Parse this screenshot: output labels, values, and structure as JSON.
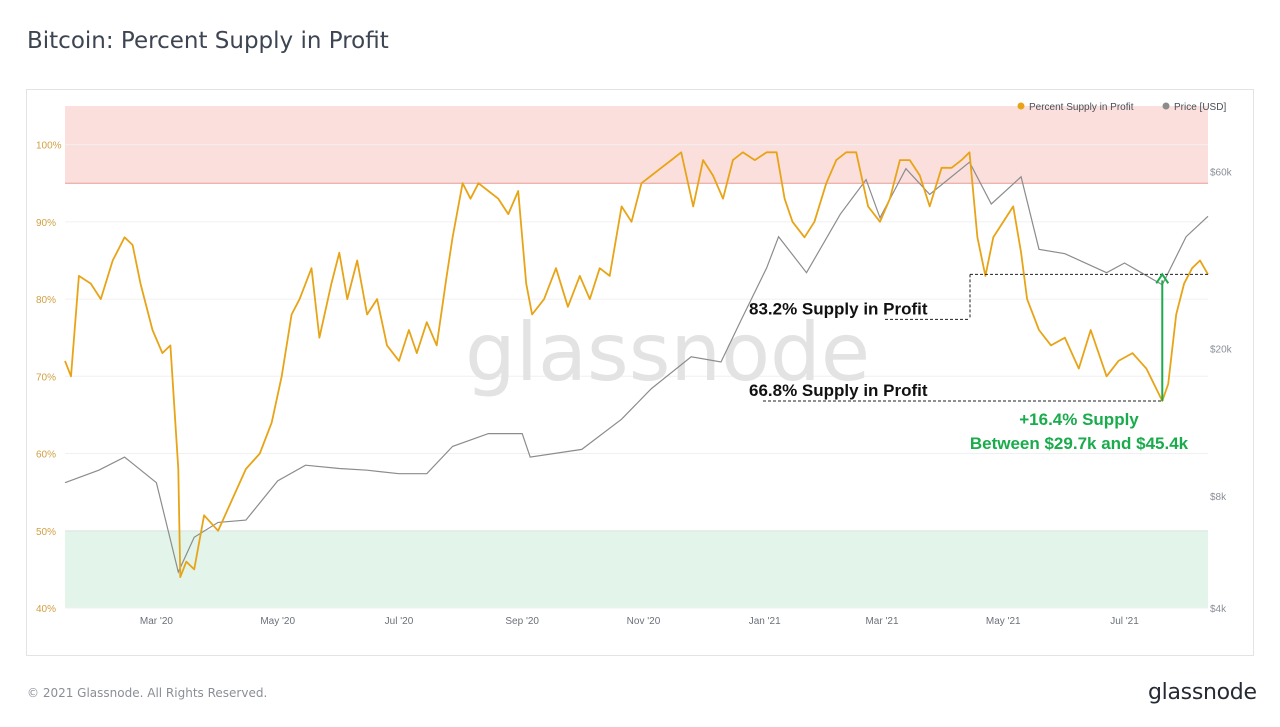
{
  "page": {
    "title": "Bitcoin: Percent Supply in Profit",
    "copyright": "© 2021 Glassnode. All Rights Reserved.",
    "brand": "glassnode",
    "watermark": "glassnode"
  },
  "colors": {
    "supply_line": "#e8a417",
    "price_line": "#8c8c8c",
    "upper_band": "#fbdfdd",
    "upper_band_line": "#e89a93",
    "lower_band": "#e3f4ea",
    "lower_band_line": "#9fd2b0",
    "green_annotation": "#1aab4c",
    "left_tick": "#d1a042",
    "right_tick": "#8a8f96"
  },
  "chart_data": {
    "type": "line",
    "legend": {
      "placement": "top-right",
      "entries": [
        "Percent Supply in Profit",
        "Price [USD]"
      ]
    },
    "x_ticks": [
      "Mar '20",
      "May '20",
      "Jul '20",
      "Sep '20",
      "Nov '20",
      "Jan '21",
      "Mar '21",
      "May '21",
      "Jul '21"
    ],
    "x_range": [
      "2020-01-15",
      "2021-08-12"
    ],
    "y_left": {
      "ticks": [
        "40%",
        "50%",
        "60%",
        "70%",
        "80%",
        "90%",
        "100%"
      ],
      "range": [
        40,
        105
      ]
    },
    "y_right": {
      "ticks": [
        "$4k",
        "$8k",
        "$20k",
        "$60k"
      ],
      "scale": "log",
      "range": [
        4000,
        90000
      ]
    },
    "bands": [
      {
        "name": "upper",
        "from": 95,
        "to": 105
      },
      {
        "name": "lower",
        "from": 40,
        "to": 50
      }
    ],
    "series": [
      {
        "name": "Percent Supply in Profit",
        "axis": "left",
        "points": [
          [
            "2020-01-15",
            72
          ],
          [
            "2020-01-18",
            70
          ],
          [
            "2020-01-22",
            83
          ],
          [
            "2020-01-28",
            82
          ],
          [
            "2020-02-02",
            80
          ],
          [
            "2020-02-08",
            85
          ],
          [
            "2020-02-14",
            88
          ],
          [
            "2020-02-18",
            87
          ],
          [
            "2020-02-22",
            82
          ],
          [
            "2020-02-28",
            76
          ],
          [
            "2020-03-04",
            73
          ],
          [
            "2020-03-08",
            74
          ],
          [
            "2020-03-12",
            58
          ],
          [
            "2020-03-13",
            44
          ],
          [
            "2020-03-16",
            46
          ],
          [
            "2020-03-20",
            45
          ],
          [
            "2020-03-25",
            52
          ],
          [
            "2020-04-01",
            50
          ],
          [
            "2020-04-08",
            54
          ],
          [
            "2020-04-15",
            58
          ],
          [
            "2020-04-22",
            60
          ],
          [
            "2020-04-28",
            64
          ],
          [
            "2020-05-03",
            70
          ],
          [
            "2020-05-08",
            78
          ],
          [
            "2020-05-12",
            80
          ],
          [
            "2020-05-18",
            84
          ],
          [
            "2020-05-22",
            75
          ],
          [
            "2020-05-28",
            82
          ],
          [
            "2020-06-01",
            86
          ],
          [
            "2020-06-05",
            80
          ],
          [
            "2020-06-10",
            85
          ],
          [
            "2020-06-15",
            78
          ],
          [
            "2020-06-20",
            80
          ],
          [
            "2020-06-25",
            74
          ],
          [
            "2020-07-01",
            72
          ],
          [
            "2020-07-06",
            76
          ],
          [
            "2020-07-10",
            73
          ],
          [
            "2020-07-15",
            77
          ],
          [
            "2020-07-20",
            74
          ],
          [
            "2020-07-25",
            83
          ],
          [
            "2020-07-28",
            88
          ],
          [
            "2020-08-02",
            95
          ],
          [
            "2020-08-06",
            93
          ],
          [
            "2020-08-10",
            95
          ],
          [
            "2020-08-15",
            94
          ],
          [
            "2020-08-20",
            93
          ],
          [
            "2020-08-25",
            91
          ],
          [
            "2020-08-30",
            94
          ],
          [
            "2020-09-03",
            82
          ],
          [
            "2020-09-06",
            78
          ],
          [
            "2020-09-12",
            80
          ],
          [
            "2020-09-18",
            84
          ],
          [
            "2020-09-24",
            79
          ],
          [
            "2020-09-30",
            83
          ],
          [
            "2020-10-05",
            80
          ],
          [
            "2020-10-10",
            84
          ],
          [
            "2020-10-15",
            83
          ],
          [
            "2020-10-21",
            92
          ],
          [
            "2020-10-26",
            90
          ],
          [
            "2020-10-31",
            95
          ],
          [
            "2020-11-05",
            96
          ],
          [
            "2020-11-10",
            97
          ],
          [
            "2020-11-15",
            98
          ],
          [
            "2020-11-20",
            99
          ],
          [
            "2020-11-26",
            92
          ],
          [
            "2020-12-01",
            98
          ],
          [
            "2020-12-06",
            96
          ],
          [
            "2020-12-11",
            93
          ],
          [
            "2020-12-16",
            98
          ],
          [
            "2020-12-21",
            99
          ],
          [
            "2020-12-27",
            98
          ],
          [
            "2021-01-02",
            99
          ],
          [
            "2021-01-07",
            99
          ],
          [
            "2021-01-11",
            93
          ],
          [
            "2021-01-15",
            90
          ],
          [
            "2021-01-21",
            88
          ],
          [
            "2021-01-26",
            90
          ],
          [
            "2021-02-01",
            95
          ],
          [
            "2021-02-06",
            98
          ],
          [
            "2021-02-11",
            99
          ],
          [
            "2021-02-16",
            99
          ],
          [
            "2021-02-22",
            92
          ],
          [
            "2021-02-28",
            90
          ],
          [
            "2021-03-05",
            93
          ],
          [
            "2021-03-10",
            98
          ],
          [
            "2021-03-15",
            98
          ],
          [
            "2021-03-20",
            96
          ],
          [
            "2021-03-25",
            92
          ],
          [
            "2021-03-31",
            97
          ],
          [
            "2021-04-05",
            97
          ],
          [
            "2021-04-10",
            98
          ],
          [
            "2021-04-14",
            99
          ],
          [
            "2021-04-18",
            88
          ],
          [
            "2021-04-22",
            83
          ],
          [
            "2021-04-26",
            88
          ],
          [
            "2021-05-01",
            90
          ],
          [
            "2021-05-06",
            92
          ],
          [
            "2021-05-10",
            86
          ],
          [
            "2021-05-13",
            80
          ],
          [
            "2021-05-19",
            76
          ],
          [
            "2021-05-25",
            74
          ],
          [
            "2021-06-01",
            75
          ],
          [
            "2021-06-08",
            71
          ],
          [
            "2021-06-14",
            76
          ],
          [
            "2021-06-22",
            70
          ],
          [
            "2021-06-28",
            72
          ],
          [
            "2021-07-05",
            73
          ],
          [
            "2021-07-12",
            71
          ],
          [
            "2021-07-20",
            66.8
          ],
          [
            "2021-07-23",
            69
          ],
          [
            "2021-07-27",
            78
          ],
          [
            "2021-07-31",
            82
          ],
          [
            "2021-08-04",
            84
          ],
          [
            "2021-08-08",
            85
          ],
          [
            "2021-08-12",
            83.2
          ]
        ]
      },
      {
        "name": "Price [USD]",
        "axis": "right",
        "points": [
          [
            "2020-01-15",
            8700
          ],
          [
            "2020-02-01",
            9400
          ],
          [
            "2020-02-14",
            10200
          ],
          [
            "2020-03-01",
            8700
          ],
          [
            "2020-03-12",
            5000
          ],
          [
            "2020-03-20",
            6200
          ],
          [
            "2020-04-01",
            6800
          ],
          [
            "2020-04-15",
            6900
          ],
          [
            "2020-05-01",
            8800
          ],
          [
            "2020-05-15",
            9700
          ],
          [
            "2020-06-01",
            9500
          ],
          [
            "2020-06-15",
            9400
          ],
          [
            "2020-07-01",
            9200
          ],
          [
            "2020-07-15",
            9200
          ],
          [
            "2020-07-28",
            10900
          ],
          [
            "2020-08-15",
            11800
          ],
          [
            "2020-09-01",
            11800
          ],
          [
            "2020-09-05",
            10200
          ],
          [
            "2020-10-01",
            10700
          ],
          [
            "2020-10-21",
            12900
          ],
          [
            "2020-11-05",
            15600
          ],
          [
            "2020-11-25",
            19000
          ],
          [
            "2020-12-10",
            18400
          ],
          [
            "2020-12-20",
            23800
          ],
          [
            "2021-01-02",
            33000
          ],
          [
            "2021-01-08",
            40000
          ],
          [
            "2021-01-22",
            32000
          ],
          [
            "2021-02-08",
            46000
          ],
          [
            "2021-02-21",
            57000
          ],
          [
            "2021-02-28",
            45000
          ],
          [
            "2021-03-13",
            61000
          ],
          [
            "2021-03-25",
            52000
          ],
          [
            "2021-04-14",
            63500
          ],
          [
            "2021-04-25",
            49000
          ],
          [
            "2021-05-10",
            58000
          ],
          [
            "2021-05-19",
            37000
          ],
          [
            "2021-06-01",
            36000
          ],
          [
            "2021-06-22",
            32000
          ],
          [
            "2021-07-01",
            34000
          ],
          [
            "2021-07-20",
            29700
          ],
          [
            "2021-08-01",
            40000
          ],
          [
            "2021-08-12",
            45400
          ]
        ]
      }
    ],
    "annotations": {
      "high_label": "83.2% Supply in Profit",
      "low_label": "66.8% Supply in Profit",
      "high_value": 83.2,
      "low_value": 66.8,
      "delta_line1": "+16.4% Supply",
      "delta_line2": "Between $29.7k and $45.4k"
    }
  }
}
